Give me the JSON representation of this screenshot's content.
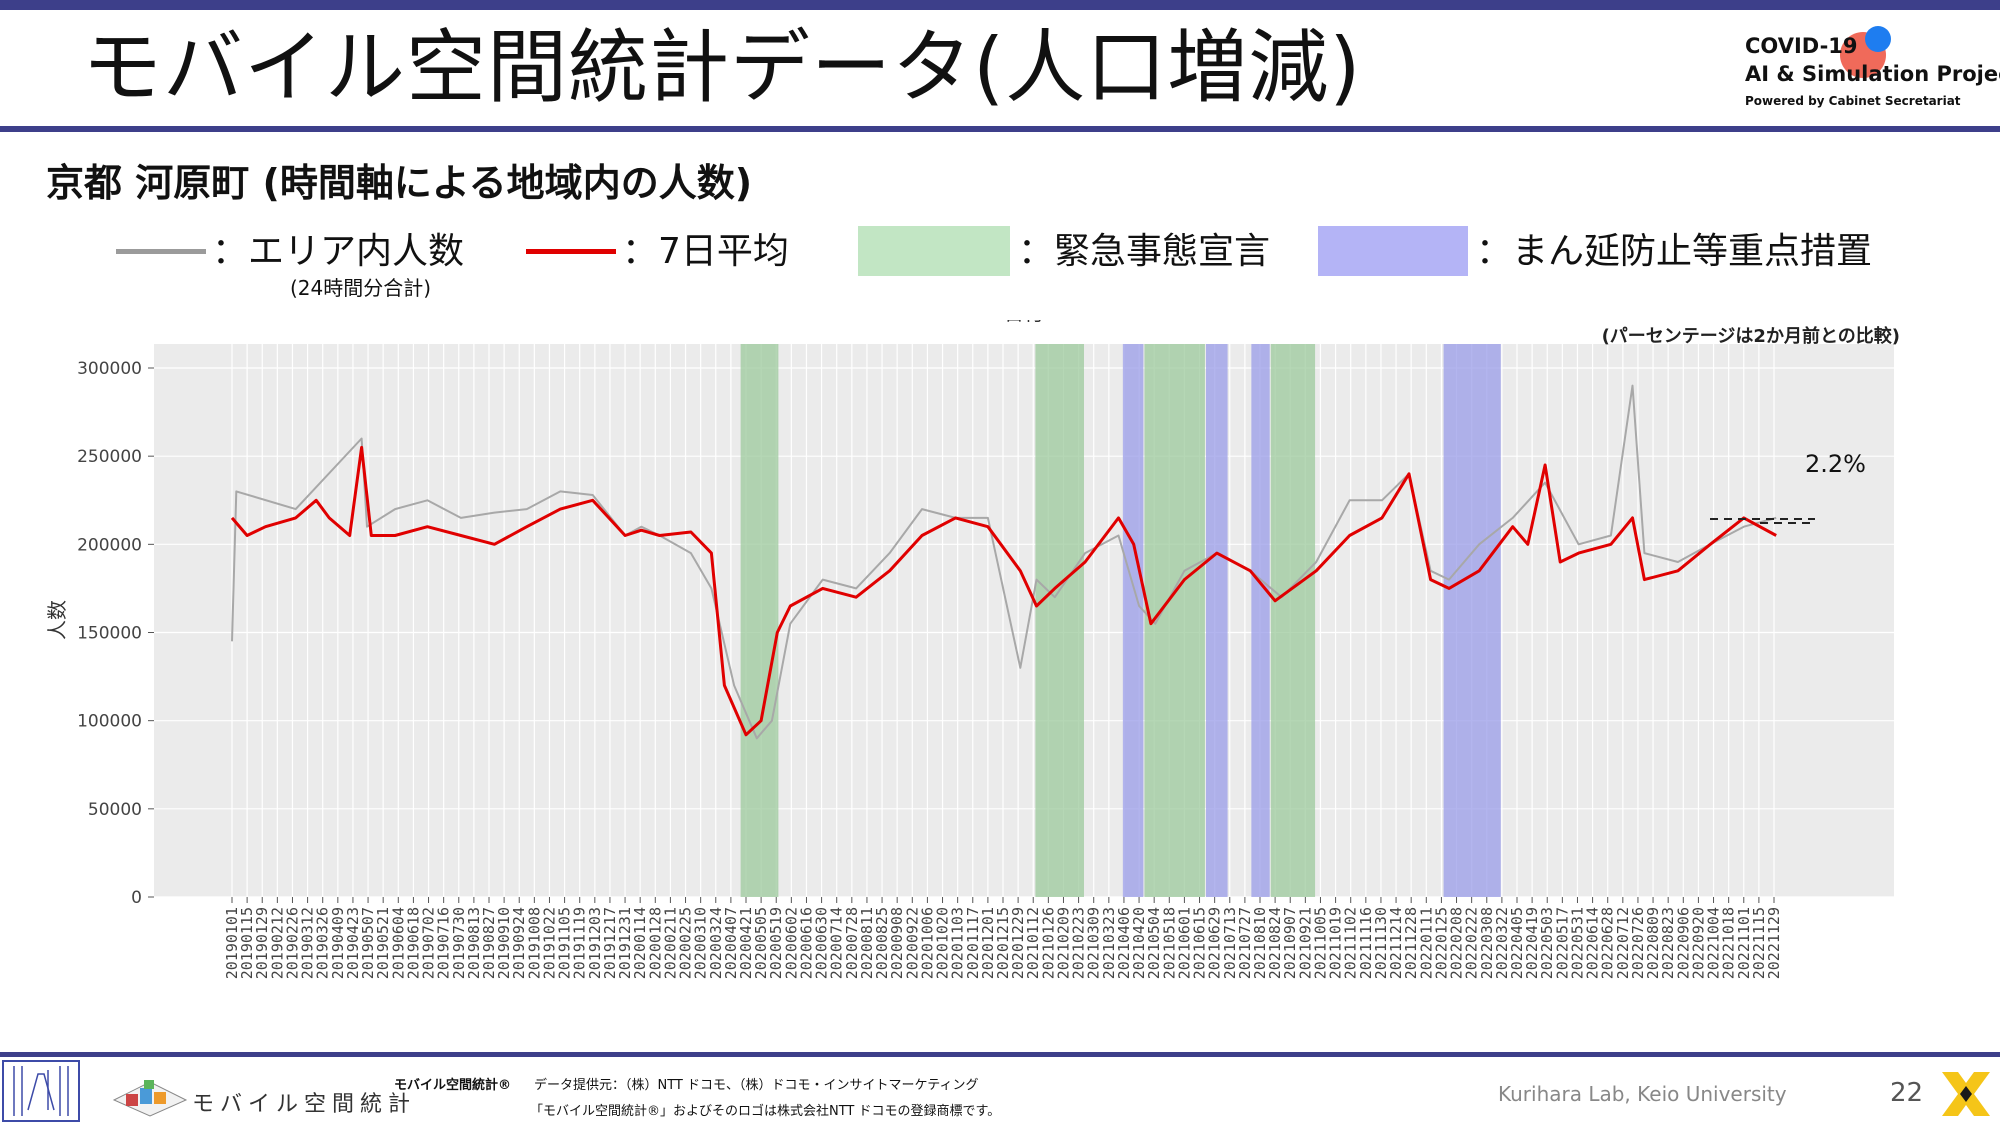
{
  "header": {
    "title": "モバイル空間統計データ(人口増減)",
    "subtitle": "京都 河原町 (時間軸による地域内の人数)"
  },
  "logo": {
    "line1": "COVID-19",
    "line2": "AI & Simulation Project",
    "line3": "Powered by Cabinet Secretariat"
  },
  "legend": {
    "area_count": "：エリア内人数",
    "area_count_note": "(24時間分合計)",
    "avg7": "：7日平均",
    "emergency": "：緊急事態宣言",
    "priority": "：まん延防止等重点措置"
  },
  "chart_data": {
    "type": "line",
    "note": "(パーセンテージは2か月前との比較)",
    "annotation": "2.2%",
    "xlabel": "日付",
    "ylabel": "人数",
    "ylim": [
      0,
      300000
    ],
    "yticks": [
      "0",
      "50000",
      "100000",
      "150000",
      "200000",
      "250000",
      "300000"
    ],
    "xticks": [
      "20190101",
      "20190115",
      "20190129",
      "20190212",
      "20190226",
      "20190312",
      "20190326",
      "20190409",
      "20190423",
      "20190507",
      "20190521",
      "20190604",
      "20190618",
      "20190702",
      "20190716",
      "20190730",
      "20190813",
      "20190827",
      "20190910",
      "20190924",
      "20191008",
      "20191022",
      "20191105",
      "20191119",
      "20191203",
      "20191217",
      "20191231",
      "20200114",
      "20200128",
      "20200211",
      "20200225",
      "20200310",
      "20200324",
      "20200407",
      "20200421",
      "20200505",
      "20200519",
      "20200602",
      "20200616",
      "20200630",
      "20200714",
      "20200728",
      "20200811",
      "20200825",
      "20200908",
      "20200922",
      "20201006",
      "20201020",
      "20201103",
      "20201117",
      "20201201",
      "20201215",
      "20201229",
      "20210112",
      "20210126",
      "20210209",
      "20210223",
      "20210309",
      "20210323",
      "20210406",
      "20210420",
      "20210504",
      "20210518",
      "20210601",
      "20210615",
      "20210629",
      "20210713",
      "20210727",
      "20210810",
      "20210824",
      "20210907",
      "20210921",
      "20211005",
      "20211019",
      "20211102",
      "20211116",
      "20211130",
      "20211214",
      "20211228",
      "20220111",
      "20220125",
      "20220208",
      "20220222",
      "20220308",
      "20220322",
      "20220405",
      "20220419",
      "20220503",
      "20220517",
      "20220531",
      "20220614",
      "20220628",
      "20220712",
      "20220726",
      "20220809",
      "20220823",
      "20220906",
      "20220920",
      "20221004",
      "20221018",
      "20221101",
      "20221115",
      "20221129"
    ],
    "emergency_periods": [
      [
        "20200416",
        "20200521"
      ],
      [
        "20210114",
        "20210228"
      ],
      [
        "20210425",
        "20210620"
      ],
      [
        "20210820",
        "20210930"
      ]
    ],
    "priority_periods": [
      [
        "20210405",
        "20210424"
      ],
      [
        "20210621",
        "20210711"
      ],
      [
        "20210802",
        "20210819"
      ],
      [
        "20220127",
        "20220321"
      ]
    ],
    "series": [
      {
        "name": "エリア内人数",
        "color": "#a8a8a8",
        "x": [
          "20190101",
          "20190105",
          "20190301",
          "20190501",
          "20190506",
          "20190601",
          "20190701",
          "20190801",
          "20190901",
          "20191001",
          "20191101",
          "20191201",
          "20191231",
          "20200115",
          "20200201",
          "20200301",
          "20200320",
          "20200410",
          "20200501",
          "20200515",
          "20200601",
          "20200701",
          "20200801",
          "20200901",
          "20201001",
          "20201101",
          "20201201",
          "20201231",
          "20210115",
          "20210201",
          "20210301",
          "20210401",
          "20210420",
          "20210505",
          "20210601",
          "20210701",
          "20210801",
          "20210830",
          "20211001",
          "20211101",
          "20211201",
          "20211226",
          "20220115",
          "20220201",
          "20220301",
          "20220401",
          "20220501",
          "20220601",
          "20220701",
          "20220721",
          "20220801",
          "20220901",
          "20221001",
          "20221101",
          "20221201"
        ],
        "values": [
          145000,
          230000,
          220000,
          260000,
          210000,
          220000,
          225000,
          215000,
          218000,
          220000,
          230000,
          228000,
          205000,
          210000,
          205000,
          195000,
          175000,
          120000,
          90000,
          100000,
          155000,
          180000,
          175000,
          195000,
          220000,
          215000,
          215000,
          130000,
          180000,
          170000,
          195000,
          205000,
          165000,
          155000,
          185000,
          195000,
          185000,
          170000,
          190000,
          225000,
          225000,
          240000,
          185000,
          180000,
          200000,
          215000,
          235000,
          200000,
          205000,
          290000,
          195000,
          190000,
          200000,
          210000,
          215000
        ]
      },
      {
        "name": "7日平均",
        "color": "#e00000",
        "x": [
          "20190101",
          "20190115",
          "20190201",
          "20190301",
          "20190320",
          "20190401",
          "20190420",
          "20190501",
          "20190510",
          "20190601",
          "20190701",
          "20190801",
          "20190901",
          "20191001",
          "20191101",
          "20191201",
          "20191231",
          "20200115",
          "20200201",
          "20200301",
          "20200320",
          "20200401",
          "20200421",
          "20200505",
          "20200520",
          "20200601",
          "20200701",
          "20200801",
          "20200901",
          "20201001",
          "20201101",
          "20201201",
          "20201231",
          "20210115",
          "20210201",
          "20210301",
          "20210401",
          "20210415",
          "20210501",
          "20210601",
          "20210701",
          "20210801",
          "20210824",
          "20211001",
          "20211101",
          "20211201",
          "20211226",
          "20220115",
          "20220201",
          "20220301",
          "20220401",
          "20220415",
          "20220501",
          "20220515",
          "20220601",
          "20220701",
          "20220721",
          "20220801",
          "20220901",
          "20221001",
          "20221101",
          "20221201"
        ],
        "values": [
          215000,
          205000,
          210000,
          215000,
          225000,
          215000,
          205000,
          255000,
          205000,
          205000,
          210000,
          205000,
          200000,
          210000,
          220000,
          225000,
          205000,
          208000,
          205000,
          207000,
          195000,
          120000,
          92000,
          100000,
          150000,
          165000,
          175000,
          170000,
          185000,
          205000,
          215000,
          210000,
          185000,
          165000,
          175000,
          190000,
          215000,
          200000,
          155000,
          180000,
          195000,
          185000,
          168000,
          185000,
          205000,
          215000,
          240000,
          180000,
          175000,
          185000,
          210000,
          200000,
          245000,
          190000,
          195000,
          200000,
          215000,
          180000,
          185000,
          200000,
          215000,
          205000
        ]
      }
    ]
  },
  "footer": {
    "brand": "モバイル空間統計",
    "brand_small": "モバイル空間統計®",
    "provider": "データ提供元：（株）NTT ドコモ、（株）ドコモ・インサイトマーケティング",
    "trademark": "「モバイル空間統計®」およびそのロゴは株式会社NTT ドコモの登録商標です。",
    "lab": "Kurihara Lab, Keio University",
    "page": "22"
  },
  "colors": {
    "rule": "#3d3f8a",
    "emergency": "#9cc99c",
    "priority": "#9a9ce8",
    "raw": "#a8a8a8",
    "avg": "#e00000",
    "plot_bg": "#ebebeb"
  }
}
